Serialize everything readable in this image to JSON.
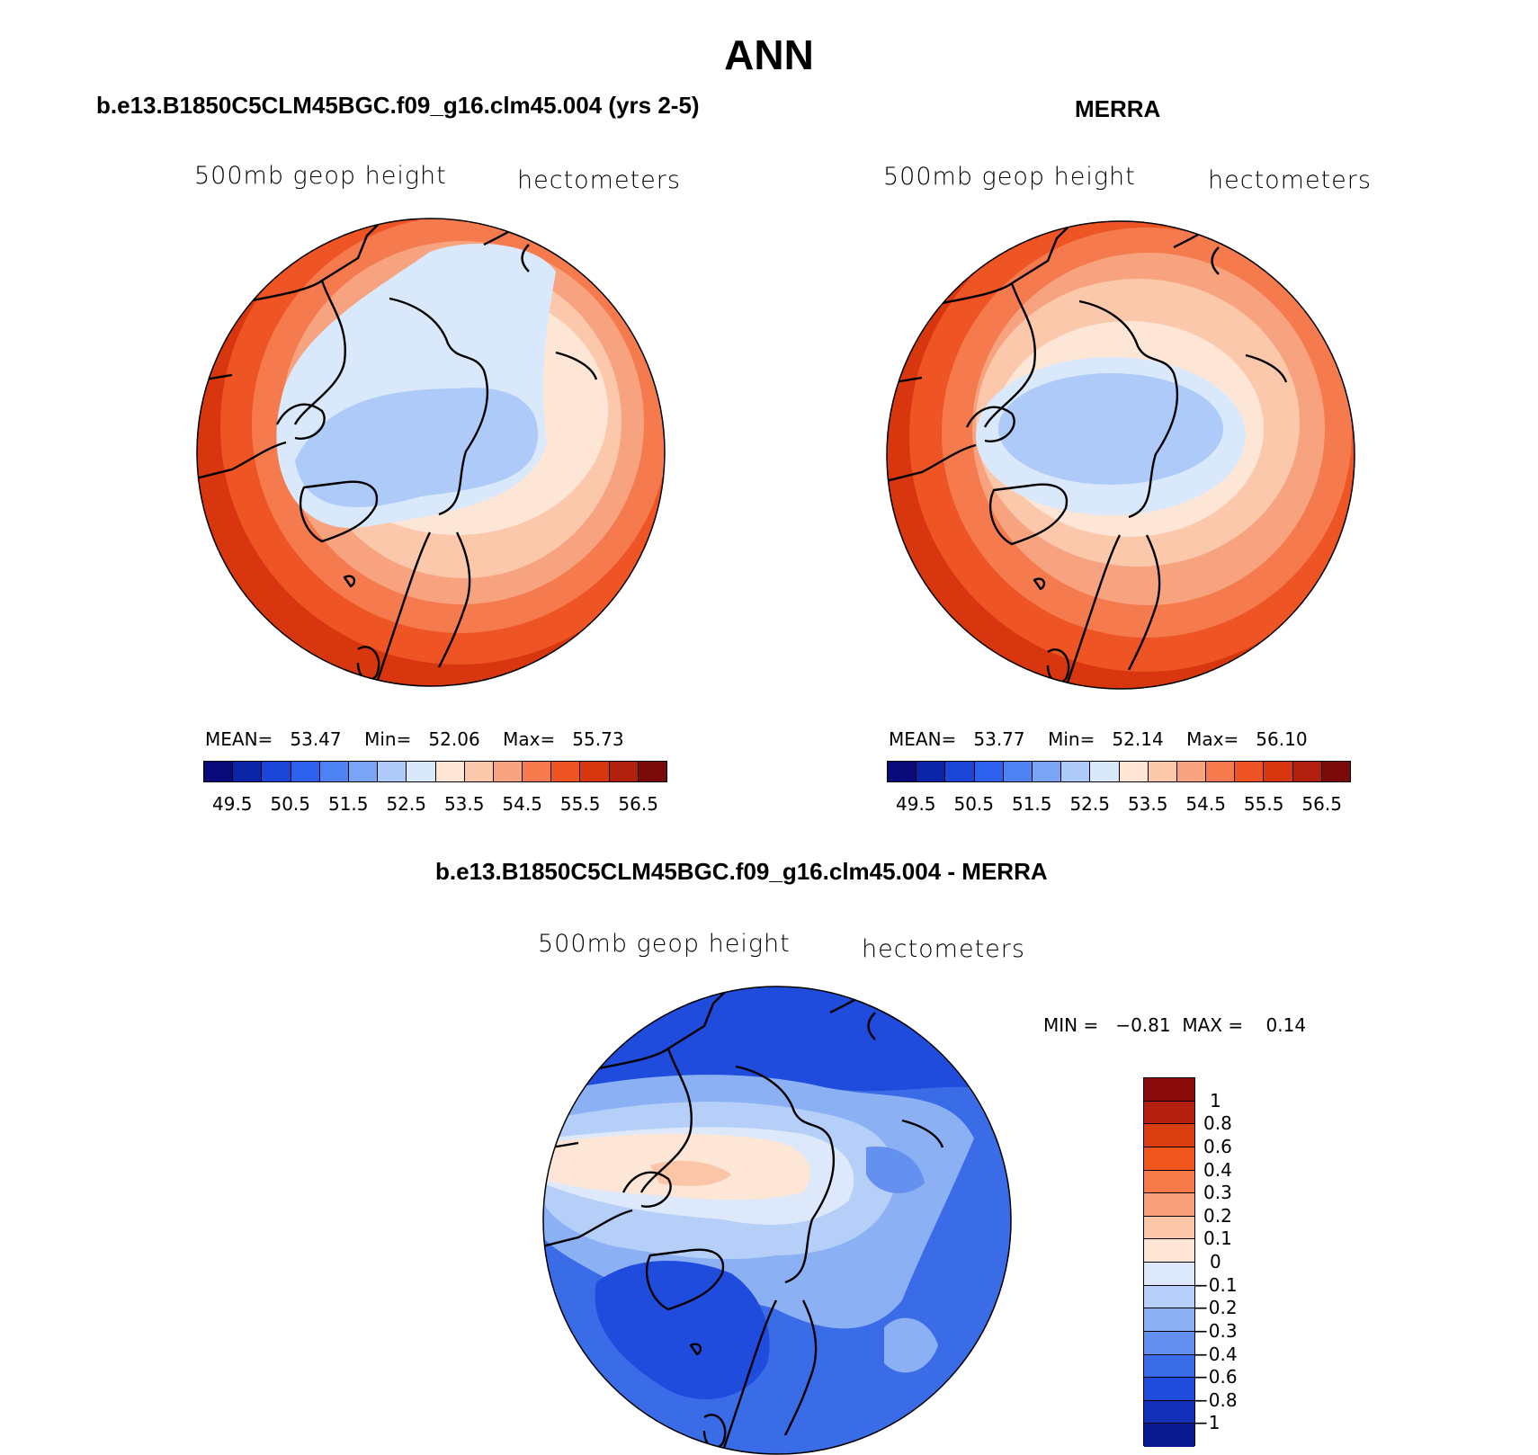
{
  "figure": {
    "title": "ANN"
  },
  "panels": [
    {
      "title": "b.e13.B1850C5CLM45BGC.f09_g16.clm45.004 (yrs 2-5)",
      "variable": "500mb geop height",
      "units": "hectometers",
      "stats": {
        "mean_label": "MEAN=",
        "mean": "53.47",
        "min_label": "Min=",
        "min": "52.06",
        "max_label": "Max=",
        "max": "55.73"
      }
    },
    {
      "title": "MERRA",
      "variable": "500mb geop height",
      "units": "hectometers",
      "stats": {
        "mean_label": "MEAN=",
        "mean": "53.77",
        "min_label": "Min=",
        "min": "52.14",
        "max_label": "Max=",
        "max": "56.10"
      }
    },
    {
      "title": "b.e13.B1850C5CLM45BGC.f09_g16.clm45.004 - MERRA",
      "variable": "500mb geop height",
      "units": "hectometers",
      "stats": {
        "min_label": "MIN =",
        "min": "−0.81",
        "max_label": "MAX =",
        "max": "0.14"
      }
    }
  ],
  "abs_colorbar": {
    "colors": [
      "#0a0a7a",
      "#0b24a6",
      "#1a45d6",
      "#2e62ee",
      "#4f82f2",
      "#7aa5f6",
      "#aecaf9",
      "#d9e8fb",
      "#fde6d6",
      "#fbc8ab",
      "#f8a37f",
      "#f57b4f",
      "#ee5424",
      "#d8360f",
      "#b1200c",
      "#7a0b08"
    ],
    "tick_labels": [
      "49.5",
      "50.5",
      "51.5",
      "52.5",
      "53.5",
      "54.5",
      "55.5",
      "56.5"
    ]
  },
  "diff_colorbar": {
    "colors": [
      "#8a0b0b",
      "#b3200f",
      "#d93d10",
      "#f2561f",
      "#f77a4a",
      "#f9a07b",
      "#fbc6a8",
      "#fde6d6",
      "#dde9fa",
      "#b5cff8",
      "#8cb0f4",
      "#6490ef",
      "#3b6ce8",
      "#1f4cdc",
      "#1230b7",
      "#0a1a90"
    ],
    "tick_labels": [
      "1",
      "0.8",
      "0.6",
      "0.4",
      "0.3",
      "0.2",
      "0.1",
      "0",
      "−0.1",
      "−0.2",
      "−0.3",
      "−0.4",
      "−0.6",
      "−0.8",
      "−1"
    ]
  }
}
